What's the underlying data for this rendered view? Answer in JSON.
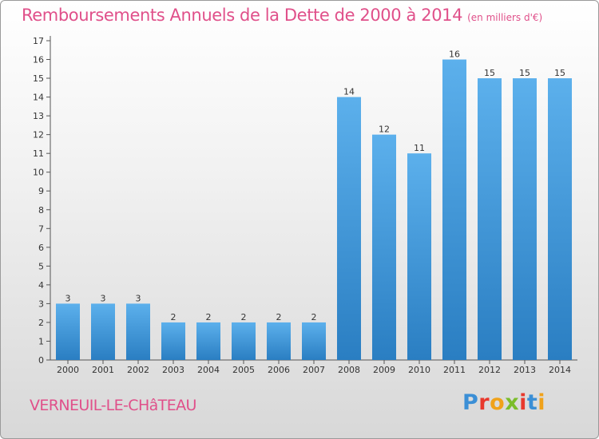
{
  "header": {
    "title": "Remboursements Annuels de la Dette de 2000 à 2014",
    "subtitle": "(en milliers d'€)"
  },
  "footer": {
    "commune": "VERNEUIL-LE-CHâTEAU",
    "logo": "Proxiti"
  },
  "colors": {
    "title": "#e0508a",
    "bar_light": "#5cb0ec",
    "bar_dark": "#2a7ec2"
  },
  "chart_data": {
    "type": "bar",
    "title": "Remboursements Annuels de la Dette de 2000 à 2014",
    "subtitle": "(en milliers d'€)",
    "xlabel": "",
    "ylabel": "",
    "categories": [
      "2000",
      "2001",
      "2002",
      "2003",
      "2004",
      "2005",
      "2006",
      "2007",
      "2008",
      "2009",
      "2010",
      "2011",
      "2012",
      "2013",
      "2014"
    ],
    "values": [
      3,
      3,
      3,
      2,
      2,
      2,
      2,
      2,
      14,
      12,
      11,
      16,
      15,
      15,
      15
    ],
    "data_labels": [
      "3",
      "3",
      "3",
      "2",
      "2",
      "2",
      "2",
      "2",
      "14",
      "12",
      "11",
      "16",
      "15",
      "15",
      "15"
    ],
    "ylim": [
      0,
      17
    ],
    "yticks": [
      "0",
      "1",
      "2",
      "3",
      "4",
      "5",
      "6",
      "7",
      "8",
      "9",
      "10",
      "11",
      "12",
      "13",
      "14",
      "15",
      "16",
      "17"
    ],
    "grid": false,
    "legend": "none"
  }
}
